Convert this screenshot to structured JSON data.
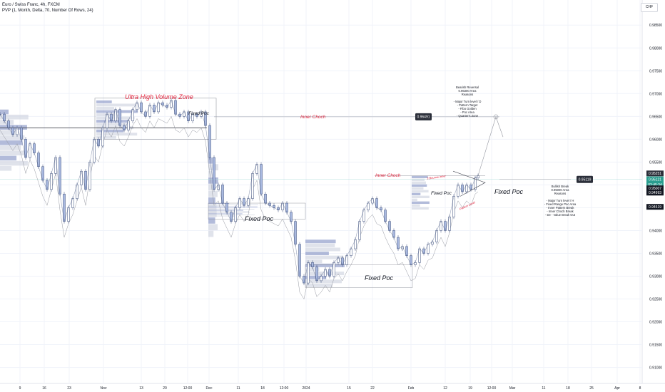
{
  "header": {
    "symbol_line": "Euro / Swiss Franc, 4h, FXCM",
    "indicator_line": "PVP (1, Month, Delta, 70, Number Of Rows, 24)",
    "currency": "CHF"
  },
  "colors": {
    "candle_stroke": "#3b4d7a",
    "candle_fill": "#a9b9e0",
    "profile_blue": "#8897c6",
    "profile_grey": "#cfd4e0",
    "annotation_red": "#e0213a",
    "price_tag_dark": "#2a2e39",
    "price_tag_teal": "#2a9d8f",
    "grid": "#f0f3fa",
    "axis_text": "#131722"
  },
  "chart_data": {
    "type": "line",
    "title": "Euro / Swiss Franc, 4h, FXCM",
    "ylim": [
      0.9065,
      0.9905
    ],
    "y_ticks": [
      "0.98500",
      "0.98000",
      "0.97500",
      "0.97000",
      "0.96500",
      "0.96000",
      "0.95500",
      "0.95000",
      "0.94500",
      "0.94000",
      "0.93500",
      "0.93000",
      "0.92500",
      "0.92000",
      "0.91500",
      "0.91000"
    ],
    "x_tick_labels": [
      "9",
      "16",
      "23",
      "Nov",
      "13",
      "20",
      "12:00",
      "Dec",
      "11",
      "18",
      "12:00",
      "2024",
      "15",
      "22",
      "Feb",
      "12",
      "19",
      "12:00",
      "Mar",
      "11",
      "18",
      "25",
      "Apr",
      "8"
    ],
    "price_path": [
      [
        0,
        0.9655
      ],
      [
        6,
        0.964
      ],
      [
        12,
        0.9625
      ],
      [
        18,
        0.961
      ],
      [
        24,
        0.9625
      ],
      [
        30,
        0.96
      ],
      [
        36,
        0.956
      ],
      [
        42,
        0.959
      ],
      [
        48,
        0.957
      ],
      [
        54,
        0.954
      ],
      [
        60,
        0.951
      ],
      [
        66,
        0.949
      ],
      [
        72,
        0.9525
      ],
      [
        78,
        0.956
      ],
      [
        84,
        0.948
      ],
      [
        90,
        0.942
      ],
      [
        96,
        0.945
      ],
      [
        102,
        0.947
      ],
      [
        108,
        0.95
      ],
      [
        114,
        0.953
      ],
      [
        120,
        0.949
      ],
      [
        126,
        0.955
      ],
      [
        132,
        0.96
      ],
      [
        138,
        0.9585
      ],
      [
        144,
        0.9625
      ],
      [
        150,
        0.9655
      ],
      [
        156,
        0.964
      ],
      [
        162,
        0.9665
      ],
      [
        168,
        0.963
      ],
      [
        174,
        0.962
      ],
      [
        180,
        0.964
      ],
      [
        186,
        0.9665
      ],
      [
        192,
        0.968
      ],
      [
        198,
        0.966
      ],
      [
        204,
        0.965
      ],
      [
        210,
        0.9675
      ],
      [
        216,
        0.966
      ],
      [
        222,
        0.968
      ],
      [
        228,
        0.9675
      ],
      [
        234,
        0.967
      ],
      [
        240,
        0.9685
      ],
      [
        246,
        0.9655
      ],
      [
        252,
        0.965
      ],
      [
        258,
        0.966
      ],
      [
        264,
        0.964
      ],
      [
        270,
        0.9655
      ],
      [
        276,
        0.965
      ],
      [
        282,
        0.966
      ],
      [
        288,
        0.963
      ],
      [
        294,
        0.956
      ],
      [
        300,
        0.949
      ],
      [
        306,
        0.95
      ],
      [
        312,
        0.946
      ],
      [
        318,
        0.944
      ],
      [
        324,
        0.942
      ],
      [
        330,
        0.945
      ],
      [
        336,
        0.947
      ],
      [
        342,
        0.9455
      ],
      [
        348,
        0.947
      ],
      [
        354,
        0.9525
      ],
      [
        360,
        0.9545
      ],
      [
        366,
        0.948
      ],
      [
        372,
        0.946
      ],
      [
        378,
        0.9455
      ],
      [
        384,
        0.945
      ],
      [
        390,
        0.9445
      ],
      [
        396,
        0.946
      ],
      [
        402,
        0.944
      ],
      [
        408,
        0.942
      ],
      [
        414,
        0.937
      ],
      [
        420,
        0.93
      ],
      [
        426,
        0.9285
      ],
      [
        432,
        0.933
      ],
      [
        438,
        0.932
      ],
      [
        444,
        0.929
      ],
      [
        450,
        0.93
      ],
      [
        456,
        0.9315
      ],
      [
        462,
        0.93
      ],
      [
        468,
        0.933
      ],
      [
        474,
        0.934
      ],
      [
        480,
        0.9325
      ],
      [
        486,
        0.9345
      ],
      [
        492,
        0.936
      ],
      [
        498,
        0.938
      ],
      [
        504,
        0.942
      ],
      [
        510,
        0.9445
      ],
      [
        516,
        0.946
      ],
      [
        522,
        0.947
      ],
      [
        528,
        0.945
      ],
      [
        534,
        0.9445
      ],
      [
        540,
        0.942
      ],
      [
        546,
        0.94
      ],
      [
        552,
        0.9385
      ],
      [
        558,
        0.936
      ],
      [
        564,
        0.9365
      ],
      [
        570,
        0.9345
      ],
      [
        576,
        0.9325
      ],
      [
        582,
        0.933
      ],
      [
        588,
        0.936
      ],
      [
        594,
        0.935
      ],
      [
        600,
        0.937
      ],
      [
        606,
        0.9375
      ],
      [
        612,
        0.94
      ],
      [
        618,
        0.942
      ],
      [
        624,
        0.94
      ],
      [
        630,
        0.943
      ],
      [
        636,
        0.9475
      ],
      [
        642,
        0.95
      ],
      [
        648,
        0.9485
      ],
      [
        654,
        0.95
      ],
      [
        660,
        0.949
      ],
      [
        666,
        0.9515
      ],
      [
        670,
        0.952
      ]
    ],
    "price_tags": [
      {
        "label": "0.96491",
        "value": 0.96491,
        "color": "#2a2e39"
      },
      {
        "label": "0.95119",
        "value": 0.95119,
        "color": "#2a2e39"
      }
    ],
    "right_axis_tags": [
      {
        "label": "0.95251",
        "value": 0.95251,
        "color": "#2a2e39"
      },
      {
        "label": "0.95121",
        "value": 0.95121,
        "color": "#2a9d8f"
      },
      {
        "label": "03:45:34",
        "value": 0.95,
        "color": "#2a9d8f"
      },
      {
        "label": "0.95007",
        "value": 0.94925,
        "color": "#131722"
      },
      {
        "label": "0.94993",
        "value": 0.9483,
        "color": "#131722"
      },
      {
        "label": "0.94519",
        "value": 0.94519,
        "color": "#131722"
      }
    ]
  },
  "annotations": {
    "ultra_high_volume_zone": "Ultra High Volume Zone",
    "fixed_poc_1": "Fixed Poc",
    "fixed_poc_2": "Fixed Poc",
    "fixed_poc_3": "Fixed Poc",
    "fixed_poc_4": "Fixed Poc",
    "fixed_poc_5": "Fixed Poc",
    "inner_choch_1": "Inner Choch",
    "inner_choch_2": "Inner Choch",
    "bounce_label": "3 Bounce inner",
    "pattern_label": "Pattern Level",
    "bearish_reversal": [
      "Bearish Reversal",
      "0.96300 Area",
      "Reasons",
      "",
      "- Major Turn level / D",
      "- Pattern Target",
      "- Fibo Golden",
      "- Poc Area",
      "- Quarter's Zone"
    ],
    "bullish_break": [
      "Bullish Break",
      "0.95000 Area",
      "Reasons",
      "",
      "- Major Turn level / H",
      "- Fixed Range Poc Area",
      "- Inner Pattern Break",
      "- Inner Choch Break",
      "- De - Value Break Out"
    ]
  }
}
